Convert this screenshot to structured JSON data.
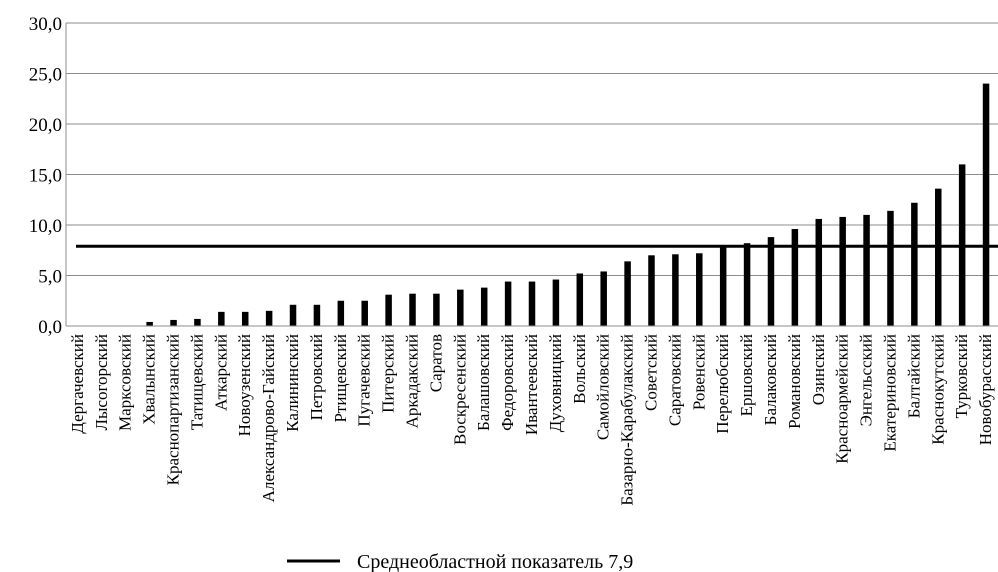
{
  "chart_data": {
    "type": "bar",
    "title": "",
    "xlabel": "",
    "ylabel": "",
    "ylim": [
      0,
      30
    ],
    "y_ticks": [
      "0,0",
      "5,0",
      "10,0",
      "15,0",
      "20,0",
      "25,0",
      "30,0"
    ],
    "grid": "horizontal",
    "bar_color": "#000000",
    "categories": [
      "Дергачевский",
      "Лысогорский",
      "Марксовский",
      "Хвалынский",
      "Краснопартизанский",
      "Татищевский",
      "Аткарский",
      "Новоузенский",
      "Александрово-Гайский",
      "Калининский",
      "Петровский",
      "Ртищевский",
      "Пугачевский",
      "Питерский",
      "Аркадакский",
      "Саратов",
      "Воскресенский",
      "Балашовский",
      "Федоровский",
      "Ивантеевский",
      "Духовницкий",
      "Вольский",
      "Самойловский",
      "Базарно-Карабулакский",
      "Советский",
      "Саратовский",
      "Ровенский",
      "Перелюбский",
      "Ершовский",
      "Балаковский",
      "Романовский",
      "Озинский",
      "Красноармейский",
      "Энгельсский",
      "Екатериновский",
      "Балтайский",
      "Краснокутский",
      "Турковский",
      "Новобурасский"
    ],
    "values": [
      0.0,
      0.0,
      0.0,
      0.4,
      0.6,
      0.7,
      1.4,
      1.4,
      1.5,
      2.1,
      2.1,
      2.5,
      2.5,
      3.1,
      3.2,
      3.2,
      3.6,
      3.8,
      4.4,
      4.4,
      4.6,
      5.2,
      5.4,
      6.4,
      7.0,
      7.1,
      7.2,
      7.9,
      8.2,
      8.8,
      9.6,
      10.6,
      10.8,
      11.0,
      11.4,
      12.2,
      13.6,
      16.0,
      24.0
    ],
    "reference_line": {
      "value": 7.9,
      "label": "Среднеобластной показатель 7,9",
      "color": "#000000"
    },
    "legend": {
      "position": "bottom",
      "entries": [
        "Среднеобластной показатель 7,9"
      ]
    }
  }
}
